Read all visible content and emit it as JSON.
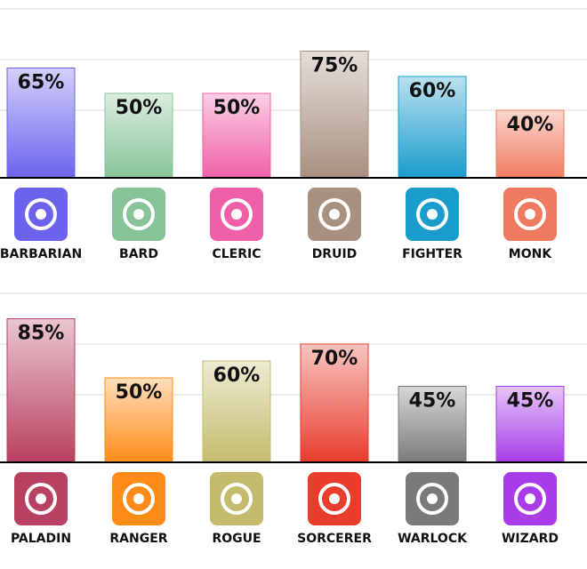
{
  "chart_data": [
    {
      "type": "bar",
      "categories": [
        "BARBARIAN",
        "BARD",
        "CLERIC",
        "DRUID",
        "FIGHTER",
        "MONK"
      ],
      "values": [
        65,
        50,
        50,
        75,
        60,
        40
      ],
      "value_labels": [
        "65%",
        "50%",
        "50%",
        "75%",
        "60%",
        "40%"
      ],
      "colors": [
        "#6b63ee",
        "#86c498",
        "#f060a8",
        "#a89080",
        "#1a9ccc",
        "#f07a60"
      ],
      "ylim": [
        0,
        100
      ],
      "yticks": [
        40,
        70,
        100
      ],
      "grid": true
    },
    {
      "type": "bar",
      "categories": [
        "PALADIN",
        "RANGER",
        "ROGUE",
        "SORCERER",
        "WARLOCK",
        "WIZARD"
      ],
      "values": [
        85,
        50,
        60,
        70,
        45,
        45
      ],
      "value_labels": [
        "85%",
        "50%",
        "60%",
        "70%",
        "45%",
        "45%"
      ],
      "colors": [
        "#b84060",
        "#ff8c18",
        "#c4bc6c",
        "#e83c2c",
        "#7a7a7a",
        "#a83ce8"
      ],
      "ylim": [
        0,
        100
      ],
      "yticks": [
        40,
        70,
        100
      ],
      "grid": true
    }
  ]
}
